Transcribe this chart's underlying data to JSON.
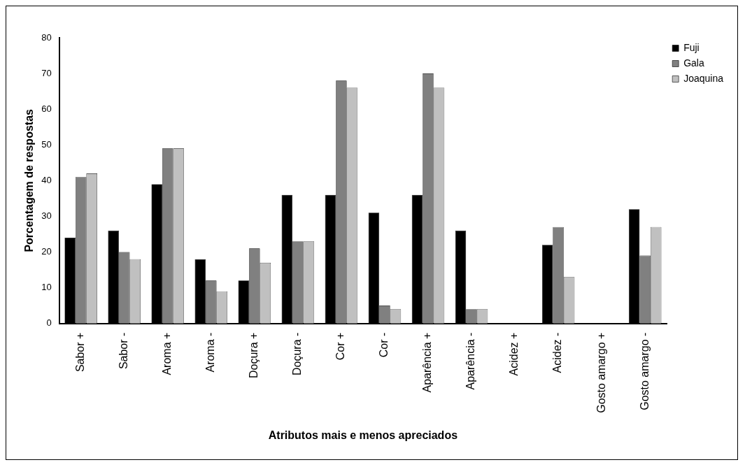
{
  "chart_data": {
    "type": "bar",
    "xlabel": "Atributos mais e menos apreciados",
    "ylabel": "Porcentagem de respostas",
    "categories": [
      "Sabor +",
      "Sabor -",
      "Aroma +",
      "Aroma -",
      "Doçura +",
      "Doçura -",
      "Cor +",
      "Cor -",
      "Aparência +",
      "Aparência -",
      "Acidez +",
      "Acidez -",
      "Gosto amargo +",
      "Gosto amargo -"
    ],
    "series": [
      {
        "name": "Fuji",
        "color": "#000000",
        "values": [
          24,
          26,
          39,
          18,
          12,
          36,
          36,
          31,
          36,
          26,
          0,
          22,
          0,
          32
        ]
      },
      {
        "name": "Gala",
        "color": "#808080",
        "values": [
          41,
          20,
          49,
          12,
          21,
          23,
          68,
          5,
          70,
          4,
          0,
          27,
          0,
          19
        ]
      },
      {
        "name": "Joaquina",
        "color": "#c0c0c0",
        "values": [
          42,
          18,
          49,
          9,
          17,
          23,
          66,
          4,
          66,
          4,
          0,
          13,
          0,
          27
        ]
      }
    ],
    "ylim": [
      0,
      80
    ],
    "yticks": [
      0,
      10,
      20,
      30,
      40,
      50,
      60,
      70,
      80
    ],
    "grid": false,
    "legend": "top right"
  }
}
